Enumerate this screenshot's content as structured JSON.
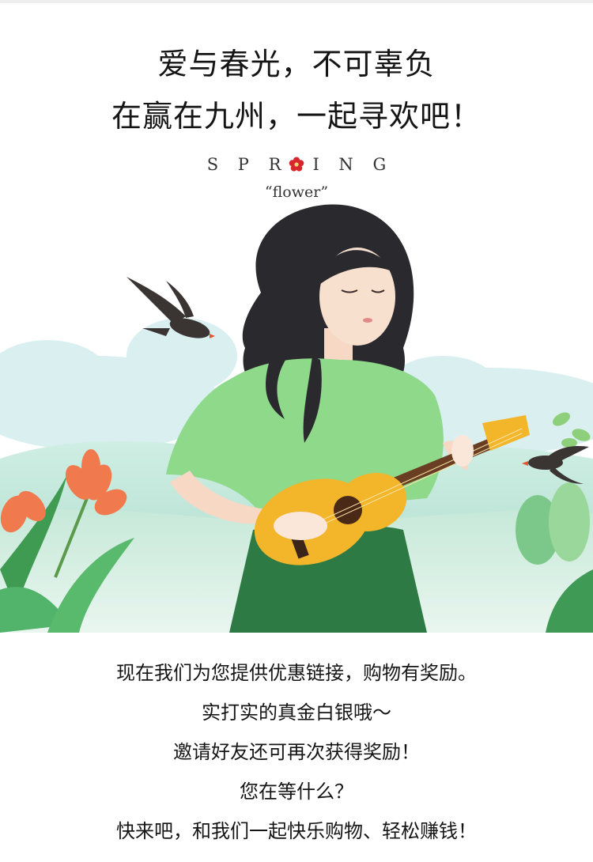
{
  "headline": {
    "line1": "爱与春光，不可辜负",
    "line2": "在赢在九州，一起寻欢吧！"
  },
  "spring_mark": {
    "letters_left": [
      "S",
      "P",
      "R"
    ],
    "letters_right": [
      "I",
      "N",
      "G"
    ],
    "tagline": "“flower”"
  },
  "illustration": {
    "subject": "girl-playing-ukulele",
    "colors": {
      "shirt": "#8ed98a",
      "skirt": "#2e7a45",
      "ukulele": "#f3b52a",
      "hair": "#2a2a2e",
      "sky": "#ffffff",
      "hills": "#bfe3d6"
    }
  },
  "body": {
    "lines": [
      "现在我们为您提供优惠链接，购物有奖励。",
      "实打实的真金白银哦～",
      "邀请好友还可再次获得奖励！",
      "您在等什么？",
      "快来吧，和我们一起快乐购物、轻松赚钱！"
    ]
  }
}
